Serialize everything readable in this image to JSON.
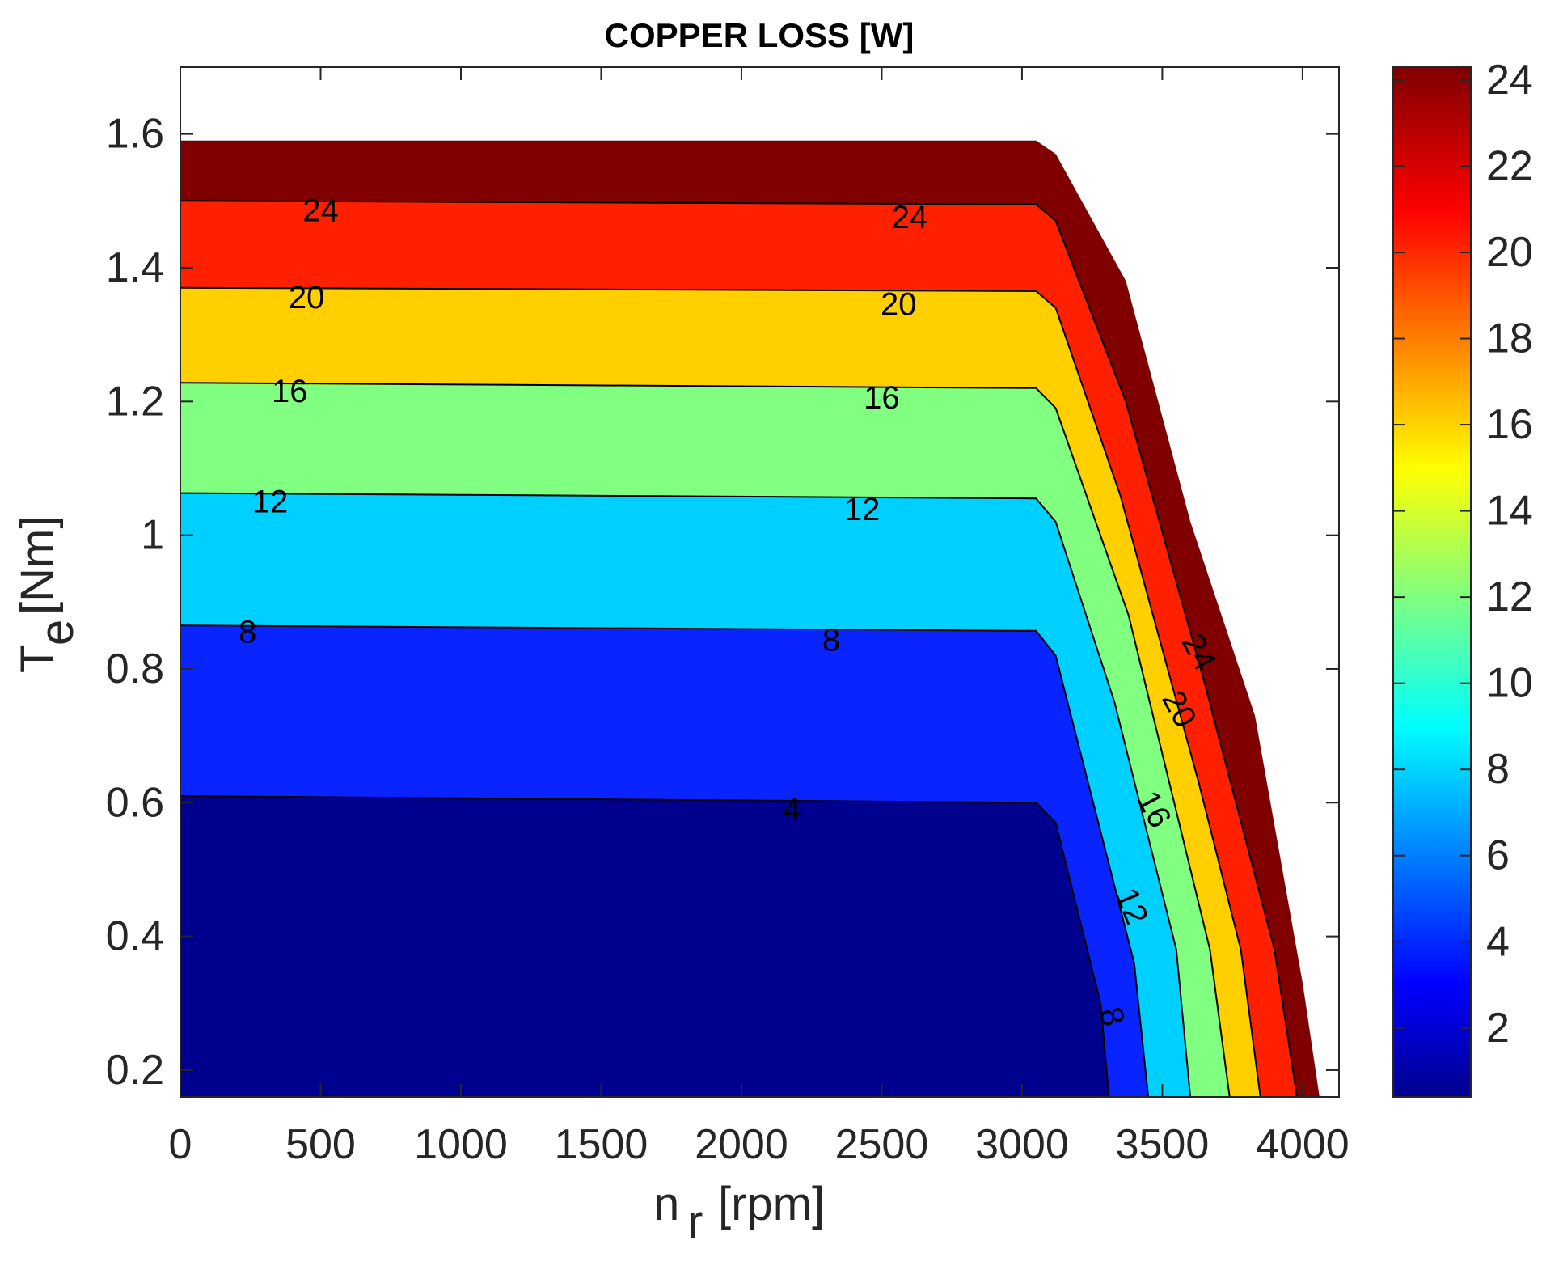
{
  "chart_data": {
    "type": "contourf",
    "title": "COPPER LOSS [W]",
    "xlabel": {
      "main": "n",
      "sub": "r",
      "unit": "[rpm]"
    },
    "ylabel": {
      "main": "T",
      "sub": "e",
      "unit": "[Nm]"
    },
    "xlim": [
      0,
      4130
    ],
    "ylim": [
      0.16,
      1.7
    ],
    "xticks": [
      0,
      500,
      1000,
      1500,
      2000,
      2500,
      3000,
      3500,
      4000
    ],
    "xtick_labels": [
      "0",
      "500",
      "1000",
      "1500",
      "2000",
      "2500",
      "3000",
      "3500",
      "4000"
    ],
    "yticks": [
      0.2,
      0.4,
      0.6,
      0.8,
      1.0,
      1.2,
      1.4,
      1.6
    ],
    "ytick_labels": [
      "0.2",
      "0.4",
      "0.6",
      "0.8",
      "1",
      "1.2",
      "1.4",
      "1.6"
    ],
    "colormap": "jet",
    "colorbar": {
      "range": [
        0.4,
        24.3
      ],
      "ticks": [
        2,
        4,
        6,
        8,
        10,
        12,
        14,
        16,
        18,
        20,
        22,
        24
      ],
      "tick_labels": [
        "2",
        "4",
        "6",
        "8",
        "10",
        "12",
        "14",
        "16",
        "18",
        "20",
        "22",
        "24"
      ],
      "location": "right"
    },
    "envelope": [
      {
        "n": 0,
        "T": 1.59
      },
      {
        "n": 3050,
        "T": 1.59
      },
      {
        "n": 3120,
        "T": 1.57
      },
      {
        "n": 3370,
        "T": 1.38
      },
      {
        "n": 3600,
        "T": 1.02
      },
      {
        "n": 3830,
        "T": 0.73
      },
      {
        "n": 4000,
        "T": 0.33
      },
      {
        "n": 4060,
        "T": 0.16
      }
    ],
    "levels": [
      {
        "value": 4,
        "color": "#00008F",
        "boundary": [
          {
            "n": 0,
            "T": 0.61
          },
          {
            "n": 3050,
            "T": 0.6
          },
          {
            "n": 3120,
            "T": 0.57
          },
          {
            "n": 3280,
            "T": 0.3
          },
          {
            "n": 3310,
            "T": 0.16
          }
        ]
      },
      {
        "value": 8,
        "color": "#0A24FF",
        "boundary": [
          {
            "n": 0,
            "T": 0.865
          },
          {
            "n": 3050,
            "T": 0.857
          },
          {
            "n": 3120,
            "T": 0.82
          },
          {
            "n": 3400,
            "T": 0.36
          },
          {
            "n": 3450,
            "T": 0.16
          }
        ]
      },
      {
        "value": 12,
        "color": "#00D0FF",
        "boundary": [
          {
            "n": 0,
            "T": 1.063
          },
          {
            "n": 3050,
            "T": 1.055
          },
          {
            "n": 3120,
            "T": 1.02
          },
          {
            "n": 3330,
            "T": 0.75
          },
          {
            "n": 3550,
            "T": 0.38
          },
          {
            "n": 3600,
            "T": 0.16
          }
        ]
      },
      {
        "value": 16,
        "color": "#80FF80",
        "boundary": [
          {
            "n": 0,
            "T": 1.228
          },
          {
            "n": 3050,
            "T": 1.22
          },
          {
            "n": 3120,
            "T": 1.19
          },
          {
            "n": 3380,
            "T": 0.88
          },
          {
            "n": 3670,
            "T": 0.38
          },
          {
            "n": 3740,
            "T": 0.16
          }
        ]
      },
      {
        "value": 20,
        "color": "#FFCF00",
        "boundary": [
          {
            "n": 0,
            "T": 1.37
          },
          {
            "n": 3050,
            "T": 1.365
          },
          {
            "n": 3120,
            "T": 1.34
          },
          {
            "n": 3350,
            "T": 1.06
          },
          {
            "n": 3630,
            "T": 0.63
          },
          {
            "n": 3780,
            "T": 0.38
          },
          {
            "n": 3850,
            "T": 0.16
          }
        ]
      },
      {
        "value": 24,
        "color": "#FF2000",
        "boundary": [
          {
            "n": 0,
            "T": 1.5
          },
          {
            "n": 3050,
            "T": 1.495
          },
          {
            "n": 3120,
            "T": 1.47
          },
          {
            "n": 3370,
            "T": 1.2
          },
          {
            "n": 3650,
            "T": 0.78
          },
          {
            "n": 3900,
            "T": 0.38
          },
          {
            "n": 3980,
            "T": 0.16
          }
        ]
      }
    ],
    "max_region_color": "#800000",
    "contour_labels": [
      {
        "text": "24",
        "n": 500,
        "T": 1.485,
        "angle": 0
      },
      {
        "text": "24",
        "n": 2600,
        "T": 1.475,
        "angle": 0
      },
      {
        "text": "20",
        "n": 450,
        "T": 1.355,
        "angle": 0
      },
      {
        "text": "20",
        "n": 2560,
        "T": 1.345,
        "angle": 0
      },
      {
        "text": "16",
        "n": 390,
        "T": 1.215,
        "angle": 0
      },
      {
        "text": "16",
        "n": 2500,
        "T": 1.205,
        "angle": 0
      },
      {
        "text": "12",
        "n": 320,
        "T": 1.05,
        "angle": 0
      },
      {
        "text": "12",
        "n": 2430,
        "T": 1.038,
        "angle": 0
      },
      {
        "text": "8",
        "n": 240,
        "T": 0.855,
        "angle": 0
      },
      {
        "text": "8",
        "n": 2320,
        "T": 0.843,
        "angle": 0
      },
      {
        "text": "4",
        "n": 2180,
        "T": 0.59,
        "angle": 0
      },
      {
        "text": "24",
        "n": 3630,
        "T": 0.825,
        "angle": 62
      },
      {
        "text": "20",
        "n": 3560,
        "T": 0.74,
        "angle": 62
      },
      {
        "text": "16",
        "n": 3470,
        "T": 0.59,
        "angle": 62
      },
      {
        "text": "12",
        "n": 3390,
        "T": 0.445,
        "angle": 68
      },
      {
        "text": "8",
        "n": 3320,
        "T": 0.28,
        "angle": 75
      }
    ]
  }
}
